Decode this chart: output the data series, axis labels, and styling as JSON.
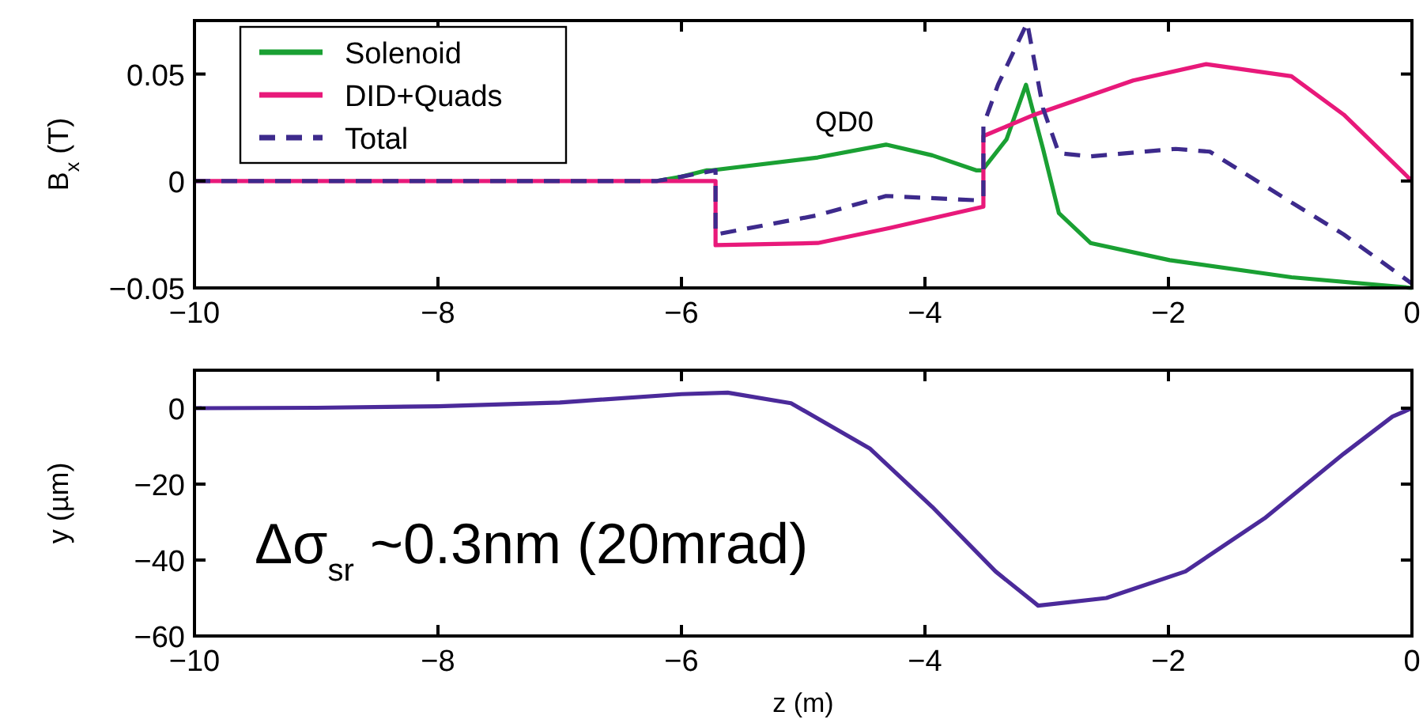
{
  "chart_data": [
    {
      "type": "line",
      "ylabel": "B$_{x}$ (T)",
      "xlim": [
        -10,
        0
      ],
      "ylim": [
        -0.05,
        0.075
      ],
      "xticks": [
        -10,
        -8,
        -6,
        -4,
        -2,
        0
      ],
      "yticks": [
        -0.05,
        0,
        0.05
      ],
      "legend": "top left",
      "grid": false,
      "annotations": [
        "QD0"
      ],
      "series": [
        {
          "name": "Solenoid",
          "color": "#1aa033",
          "line_style": "solid",
          "x": [
            -6.2,
            -6,
            -5.79,
            -5.75,
            -4.88,
            -4.32,
            -3.94,
            -3.58,
            -3.53,
            -3.33,
            -3.17,
            -3.03,
            -2.9,
            -2.64,
            -1.99,
            -0.99,
            0
          ],
          "values": [
            0,
            0.002,
            0.005,
            0.005,
            0.011,
            0.017,
            0.012,
            0.005,
            0.005,
            0.0195,
            0.045,
            0.015,
            -0.015,
            -0.029,
            -0.037,
            -0.045,
            -0.05
          ]
        },
        {
          "name": "DID+Quads",
          "color": "#e8197a",
          "line_style": "solid",
          "x": [
            -10,
            -8,
            -6,
            -5.72,
            -5.72,
            -4.88,
            -4.29,
            -3.52,
            -3.52,
            -3.1,
            -2.29,
            -1.69,
            -0.99,
            -0.56,
            0
          ],
          "values": [
            0,
            0,
            0,
            0,
            -0.03,
            -0.029,
            -0.022,
            -0.012,
            0.021,
            0.031,
            0.047,
            0.0546,
            0.049,
            0.031,
            0
          ]
        },
        {
          "name": "Total",
          "color": "#3d2a8c",
          "line_style": "dashed",
          "x": [
            -10,
            -8,
            -6.5,
            -6.2,
            -6,
            -5.72,
            -5.72,
            -4.88,
            -4.32,
            -3.58,
            -3.52,
            -3.52,
            -3.4,
            -3.16,
            -3.03,
            -2.9,
            -2.64,
            -1.94,
            -1.66,
            -0.99,
            -0.56,
            0
          ],
          "values": [
            0,
            0,
            0,
            0,
            0.002,
            0.005,
            -0.025,
            -0.016,
            -0.007,
            -0.009,
            -0.0075,
            0.026,
            0.045,
            0.074,
            0.034,
            0.013,
            0.0115,
            0.015,
            0.0137,
            -0.01,
            -0.025,
            -0.048
          ]
        }
      ]
    },
    {
      "type": "line",
      "xlabel": "z (m)",
      "ylabel": "y (µm)",
      "xlim": [
        -10,
        0
      ],
      "ylim": [
        -60,
        10
      ],
      "xticks": [
        -10,
        -8,
        -6,
        -4,
        -2,
        0
      ],
      "yticks": [
        -60,
        -40,
        -20,
        0
      ],
      "grid": false,
      "annotations": [
        "Δσ$_{sr}$ ~0.3nm (20mrad)"
      ],
      "series": [
        {
          "color": "#4b2a9a",
          "line_style": "solid",
          "x": [
            -10,
            -9,
            -8,
            -7,
            -6,
            -5.62,
            -5.1,
            -4.45,
            -3.94,
            -3.42,
            -3.07,
            -2.51,
            -1.86,
            -1.21,
            -0.56,
            -0.16,
            0
          ],
          "values": [
            0,
            0.1,
            0.5,
            1.5,
            3.7,
            4.1,
            1.3,
            -10.7,
            -26,
            -43,
            -52,
            -50,
            -43,
            -29,
            -12,
            -2.2,
            0
          ]
        }
      ]
    }
  ]
}
